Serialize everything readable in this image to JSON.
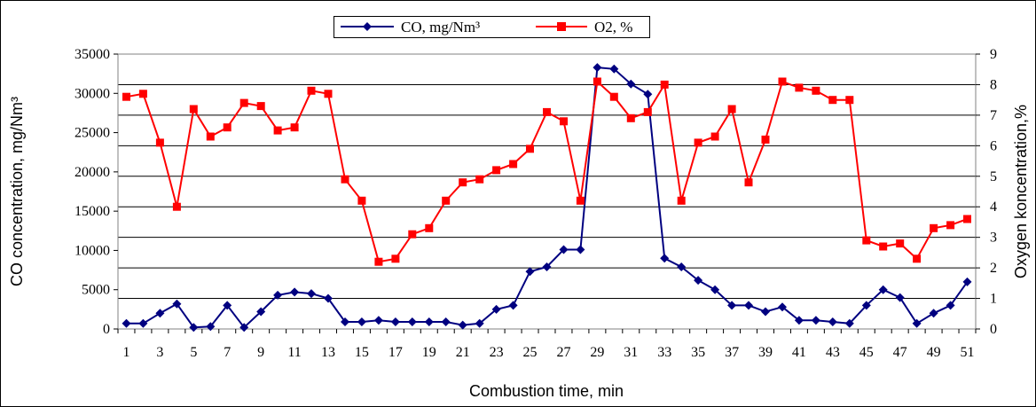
{
  "chart_data": {
    "type": "line",
    "xlabel": "Combustion time, min",
    "ylabel_left": "CO concentration, mg/Nm³",
    "ylabel_right": "Oxygen koncentration,%",
    "ylim_left": [
      0,
      35000
    ],
    "ylim_right": [
      0,
      9
    ],
    "yticks_left": [
      "0",
      "5000",
      "10000",
      "15000",
      "20000",
      "25000",
      "30000",
      "35000"
    ],
    "yticks_right": [
      "0",
      "1",
      "2",
      "3",
      "4",
      "5",
      "6",
      "7",
      "8",
      "9"
    ],
    "x": [
      1,
      2,
      3,
      4,
      5,
      6,
      7,
      8,
      9,
      10,
      11,
      12,
      13,
      14,
      15,
      16,
      17,
      18,
      19,
      20,
      21,
      22,
      23,
      24,
      25,
      26,
      27,
      28,
      29,
      30,
      31,
      32,
      33,
      34,
      35,
      36,
      37,
      38,
      39,
      40,
      41,
      42,
      43,
      44,
      45,
      46,
      47,
      48,
      49,
      50,
      51
    ],
    "xtick_labels": [
      "1",
      "3",
      "5",
      "7",
      "9",
      "11",
      "13",
      "15",
      "17",
      "19",
      "21",
      "23",
      "25",
      "27",
      "29",
      "31",
      "33",
      "35",
      "37",
      "39",
      "41",
      "43",
      "45",
      "47",
      "49",
      "51"
    ],
    "grid": true,
    "legend_position": "top-center",
    "series": [
      {
        "name": "CO, mg/Nm³",
        "axis": "left",
        "color": "#000080",
        "marker": "diamond",
        "values": [
          700,
          700,
          2000,
          3200,
          200,
          300,
          3000,
          200,
          2200,
          4300,
          4700,
          4500,
          3900,
          900,
          900,
          1100,
          900,
          900,
          900,
          900,
          500,
          700,
          2500,
          3000,
          7300,
          7900,
          10100,
          10100,
          33300,
          33100,
          31200,
          29900,
          9000,
          7900,
          6200,
          5000,
          3000,
          3000,
          2200,
          2800,
          1100,
          1100,
          900,
          700,
          3000,
          5000,
          4000,
          700,
          2000,
          3000,
          6000
        ]
      },
      {
        "name": "O2, %",
        "axis": "right",
        "color": "#ff0000",
        "marker": "square",
        "values": [
          7.6,
          7.7,
          6.1,
          4.0,
          7.2,
          6.3,
          6.6,
          7.4,
          7.3,
          6.5,
          6.6,
          7.8,
          7.7,
          4.9,
          4.2,
          2.2,
          2.3,
          3.1,
          3.3,
          4.2,
          4.8,
          4.9,
          5.2,
          5.4,
          5.9,
          7.1,
          6.8,
          4.2,
          8.1,
          7.6,
          6.9,
          7.1,
          8.0,
          4.2,
          6.1,
          6.3,
          7.2,
          4.8,
          6.2,
          8.1,
          7.9,
          7.8,
          7.5,
          7.5,
          2.9,
          2.7,
          2.8,
          2.3,
          3.3,
          3.4,
          3.6
        ]
      }
    ]
  }
}
